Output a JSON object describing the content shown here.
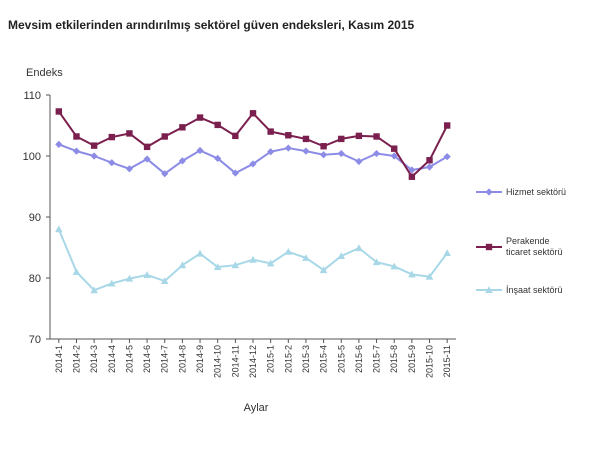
{
  "chart_data": {
    "type": "line",
    "title": "Mevsim etkilerinden arındırılmış sektörel güven endeksleri, Kasım 2015",
    "ylabel": "Endeks",
    "xlabel": "Aylar",
    "ylim": [
      70,
      110
    ],
    "yticks": [
      70,
      80,
      90,
      100,
      110
    ],
    "grid": false,
    "legend_position": "right",
    "categories": [
      "2014-1",
      "2014-2",
      "2014-3",
      "2014-4",
      "2014-5",
      "2014-6",
      "2014-7",
      "2014-8",
      "2014-9",
      "2014-10",
      "2014-11",
      "2014-12",
      "2015-1",
      "2015-2",
      "2015-3",
      "2015-4",
      "2015-5",
      "2015-6",
      "2015-7",
      "2015-8",
      "2015-9",
      "2015-10",
      "2015-11"
    ],
    "series": [
      {
        "name": "Hizmet sektörü",
        "color": "#8c8ce6",
        "marker": "diamond",
        "values": [
          101.9,
          100.8,
          100.0,
          98.9,
          97.9,
          99.5,
          97.1,
          99.2,
          100.9,
          99.6,
          97.2,
          98.7,
          100.7,
          101.3,
          100.8,
          100.2,
          100.4,
          99.1,
          100.4,
          100.0,
          97.7,
          98.2,
          99.9
        ]
      },
      {
        "name": "Perakende ticaret sektörü",
        "name_lines": [
          "Perakende",
          "ticaret sektörü"
        ],
        "color": "#7a1f4e",
        "marker": "square",
        "values": [
          107.3,
          103.2,
          101.7,
          103.1,
          103.7,
          101.5,
          103.2,
          104.7,
          106.3,
          105.1,
          103.3,
          107.0,
          104.0,
          103.4,
          102.8,
          101.6,
          102.8,
          103.3,
          103.2,
          101.2,
          96.6,
          99.3,
          105.0
        ]
      },
      {
        "name": "İnşaat sektörü",
        "color": "#a8d8e8",
        "marker": "triangle",
        "values": [
          88.0,
          81.0,
          78.0,
          79.1,
          79.9,
          80.5,
          79.5,
          82.1,
          84.0,
          81.8,
          82.1,
          83.0,
          82.4,
          84.3,
          83.3,
          81.3,
          83.6,
          84.9,
          82.6,
          81.9,
          80.6,
          80.2,
          84.1
        ]
      }
    ]
  }
}
